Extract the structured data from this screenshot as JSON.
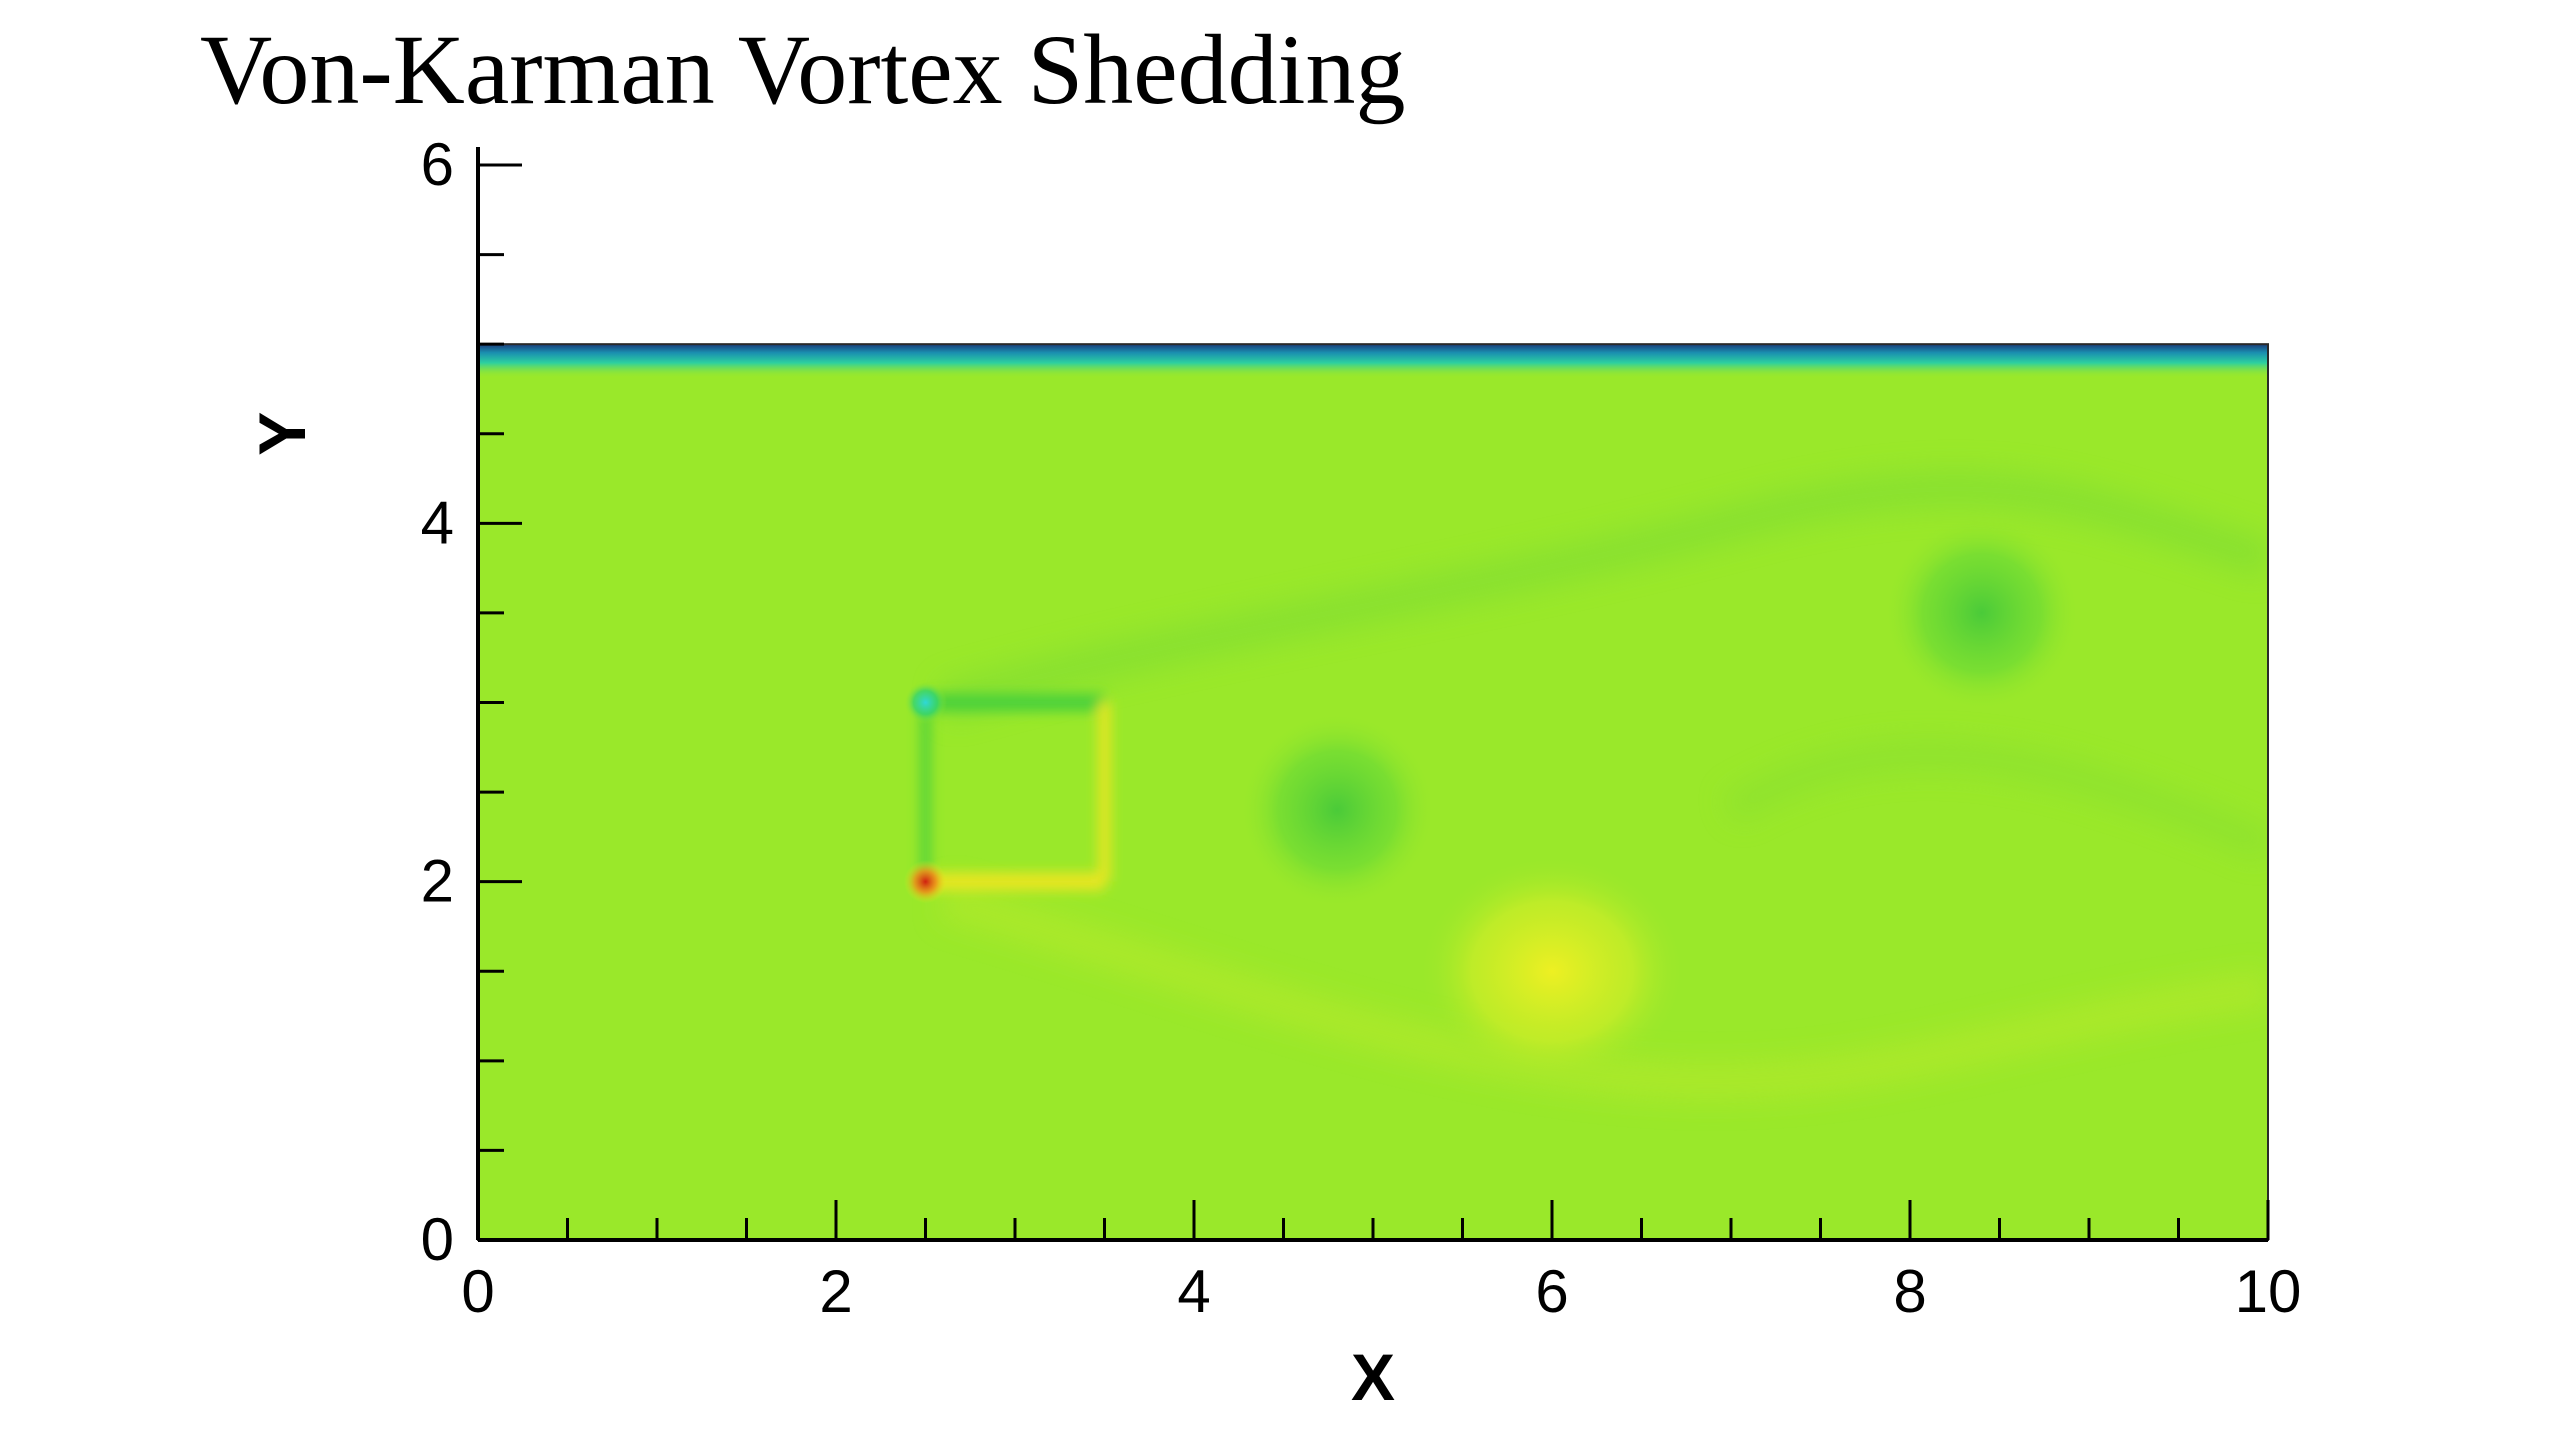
{
  "title": "Von-Karman Vortex Shedding",
  "chart_data": {
    "type": "heatmap",
    "title": "Von-Karman Vortex Shedding",
    "xlabel": "X",
    "ylabel": "Y",
    "xlim": [
      0,
      10
    ],
    "ylim": [
      0,
      6
    ],
    "domain": {
      "x": [
        0,
        10
      ],
      "y": [
        0,
        5
      ]
    },
    "x_ticks": [
      0,
      2,
      4,
      6,
      8,
      10
    ],
    "y_ticks": [
      0,
      2,
      4,
      6
    ],
    "x_minor_step": 0.5,
    "y_minor_step": 0.5,
    "grid": false,
    "colors": {
      "background_field": "#9ae82a",
      "wall_top": "#1a6b8a",
      "low_value": "#4cd13a",
      "high_value": "#f0f020",
      "hot_spot": "#d83018",
      "cold_spot": "#2fd8c8"
    },
    "features": [
      {
        "kind": "obstacle-edge",
        "x": [
          2.5,
          3.5
        ],
        "y": [
          2.0,
          3.0
        ]
      },
      {
        "kind": "cold-spot",
        "x": 2.5,
        "y": 3.0
      },
      {
        "kind": "hot-spot",
        "x": 2.5,
        "y": 2.0
      },
      {
        "kind": "vortex-low",
        "x": 4.8,
        "y": 2.4
      },
      {
        "kind": "vortex-high",
        "x": 6.0,
        "y": 1.5
      },
      {
        "kind": "vortex-low",
        "x": 8.4,
        "y": 3.5
      }
    ]
  }
}
